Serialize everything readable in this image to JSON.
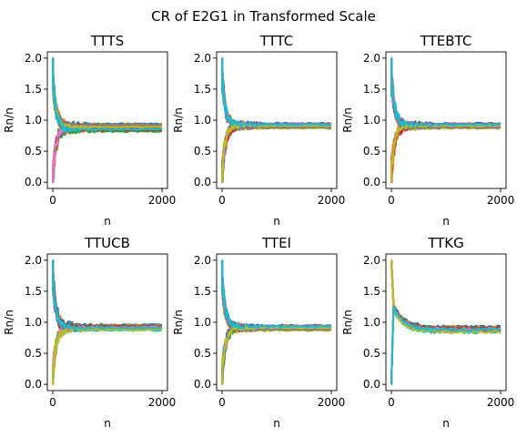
{
  "figure_title": "CR of E2G1 in Transformed Scale",
  "chart_data": [
    {
      "type": "line",
      "title": "TTTS",
      "xlabel": "n",
      "ylabel": "Rn/n",
      "xlim": [
        -100,
        2100
      ],
      "ylim": [
        -0.1,
        2.1
      ],
      "xticks": [
        0,
        2000
      ],
      "xtick_labels": [
        "0",
        "2000"
      ],
      "yticks": [
        0.0,
        0.5,
        1.0,
        1.5,
        2.0
      ],
      "ytick_labels": [
        "0.0",
        "0.5",
        "1.0",
        "1.5",
        "2.0"
      ],
      "series_finals": [
        0.94,
        0.93,
        0.92,
        0.91,
        0.9,
        0.89,
        0.88,
        0.87,
        0.86,
        0.85,
        0.84,
        0.83,
        0.82,
        0.84,
        0.86,
        0.88,
        0.9,
        0.92,
        0.89,
        0.85
      ]
    },
    {
      "type": "line",
      "title": "TTTC",
      "xlabel": "n",
      "ylabel": "Rn/n",
      "xlim": [
        -100,
        2100
      ],
      "ylim": [
        -0.1,
        2.1
      ],
      "xticks": [
        0,
        2000
      ],
      "xtick_labels": [
        "0",
        "2000"
      ],
      "yticks": [
        0.0,
        0.5,
        1.0,
        1.5,
        2.0
      ],
      "ytick_labels": [
        "0.0",
        "0.5",
        "1.0",
        "1.5",
        "2.0"
      ],
      "series_finals": [
        0.95,
        0.94,
        0.93,
        0.92,
        0.91,
        0.9,
        0.89,
        0.88,
        0.87,
        0.93,
        0.92,
        0.91,
        0.9,
        0.89,
        0.94,
        0.92,
        0.9,
        0.88,
        0.91,
        0.93
      ]
    },
    {
      "type": "line",
      "title": "TTEBTC",
      "xlabel": "n",
      "ylabel": "Rn/n",
      "xlim": [
        -100,
        2100
      ],
      "ylim": [
        -0.1,
        2.1
      ],
      "xticks": [
        0,
        2000
      ],
      "xtick_labels": [
        "0",
        "2000"
      ],
      "yticks": [
        0.0,
        0.5,
        1.0,
        1.5,
        2.0
      ],
      "ytick_labels": [
        "0.0",
        "0.5",
        "1.0",
        "1.5",
        "2.0"
      ],
      "series_finals": [
        0.95,
        0.94,
        0.93,
        0.92,
        0.91,
        0.9,
        0.89,
        0.88,
        0.87,
        0.93,
        0.92,
        0.91,
        0.9,
        0.89,
        0.94,
        0.92,
        0.9,
        0.88,
        0.91,
        0.93
      ]
    },
    {
      "type": "line",
      "title": "TTUCB",
      "xlabel": "n",
      "ylabel": "Rn/n",
      "xlim": [
        -100,
        2100
      ],
      "ylim": [
        -0.1,
        2.1
      ],
      "xticks": [
        0,
        2000
      ],
      "xtick_labels": [
        "0",
        "2000"
      ],
      "yticks": [
        0.0,
        0.5,
        1.0,
        1.5,
        2.0
      ],
      "ytick_labels": [
        "0.0",
        "0.5",
        "1.0",
        "1.5",
        "2.0"
      ],
      "series_finals": [
        0.96,
        0.95,
        0.94,
        0.93,
        0.92,
        0.91,
        0.9,
        0.89,
        0.88,
        0.87,
        0.93,
        0.92,
        0.91,
        0.9,
        0.89,
        0.94,
        0.92,
        0.9,
        0.88,
        0.91
      ]
    },
    {
      "type": "line",
      "title": "TTEI",
      "xlabel": "n",
      "ylabel": "Rn/n",
      "xlim": [
        -100,
        2100
      ],
      "ylim": [
        -0.1,
        2.1
      ],
      "xticks": [
        0,
        2000
      ],
      "xtick_labels": [
        "0",
        "2000"
      ],
      "yticks": [
        0.0,
        0.5,
        1.0,
        1.5,
        2.0
      ],
      "ytick_labels": [
        "0.0",
        "0.5",
        "1.0",
        "1.5",
        "2.0"
      ],
      "series_finals": [
        0.95,
        0.94,
        0.93,
        0.92,
        0.91,
        0.9,
        0.89,
        0.88,
        0.87,
        0.93,
        0.92,
        0.91,
        0.9,
        0.89,
        0.94,
        0.92,
        0.9,
        0.88,
        0.91,
        0.93
      ]
    },
    {
      "type": "line",
      "title": "TTKG",
      "xlabel": "n",
      "ylabel": "Rn/n",
      "xlim": [
        -100,
        2100
      ],
      "ylim": [
        -0.1,
        2.1
      ],
      "xticks": [
        0,
        2000
      ],
      "xtick_labels": [
        "0",
        "2000"
      ],
      "yticks": [
        0.0,
        0.5,
        1.0,
        1.5,
        2.0
      ],
      "ytick_labels": [
        "0.0",
        "0.5",
        "1.0",
        "1.5",
        "2.0"
      ],
      "series_finals": [
        0.93,
        0.92,
        0.91,
        0.9,
        0.89,
        0.88,
        0.87,
        0.86,
        0.85,
        0.84,
        0.9,
        0.89,
        0.88,
        0.87,
        0.86,
        0.91,
        0.89,
        0.87,
        0.85,
        0.88
      ]
    }
  ],
  "palette": [
    "#1f77b4",
    "#ff7f0e",
    "#2ca02c",
    "#d62728",
    "#9467bd",
    "#8c564b",
    "#e377c2",
    "#7f7f7f",
    "#bcbd22",
    "#17becf"
  ]
}
